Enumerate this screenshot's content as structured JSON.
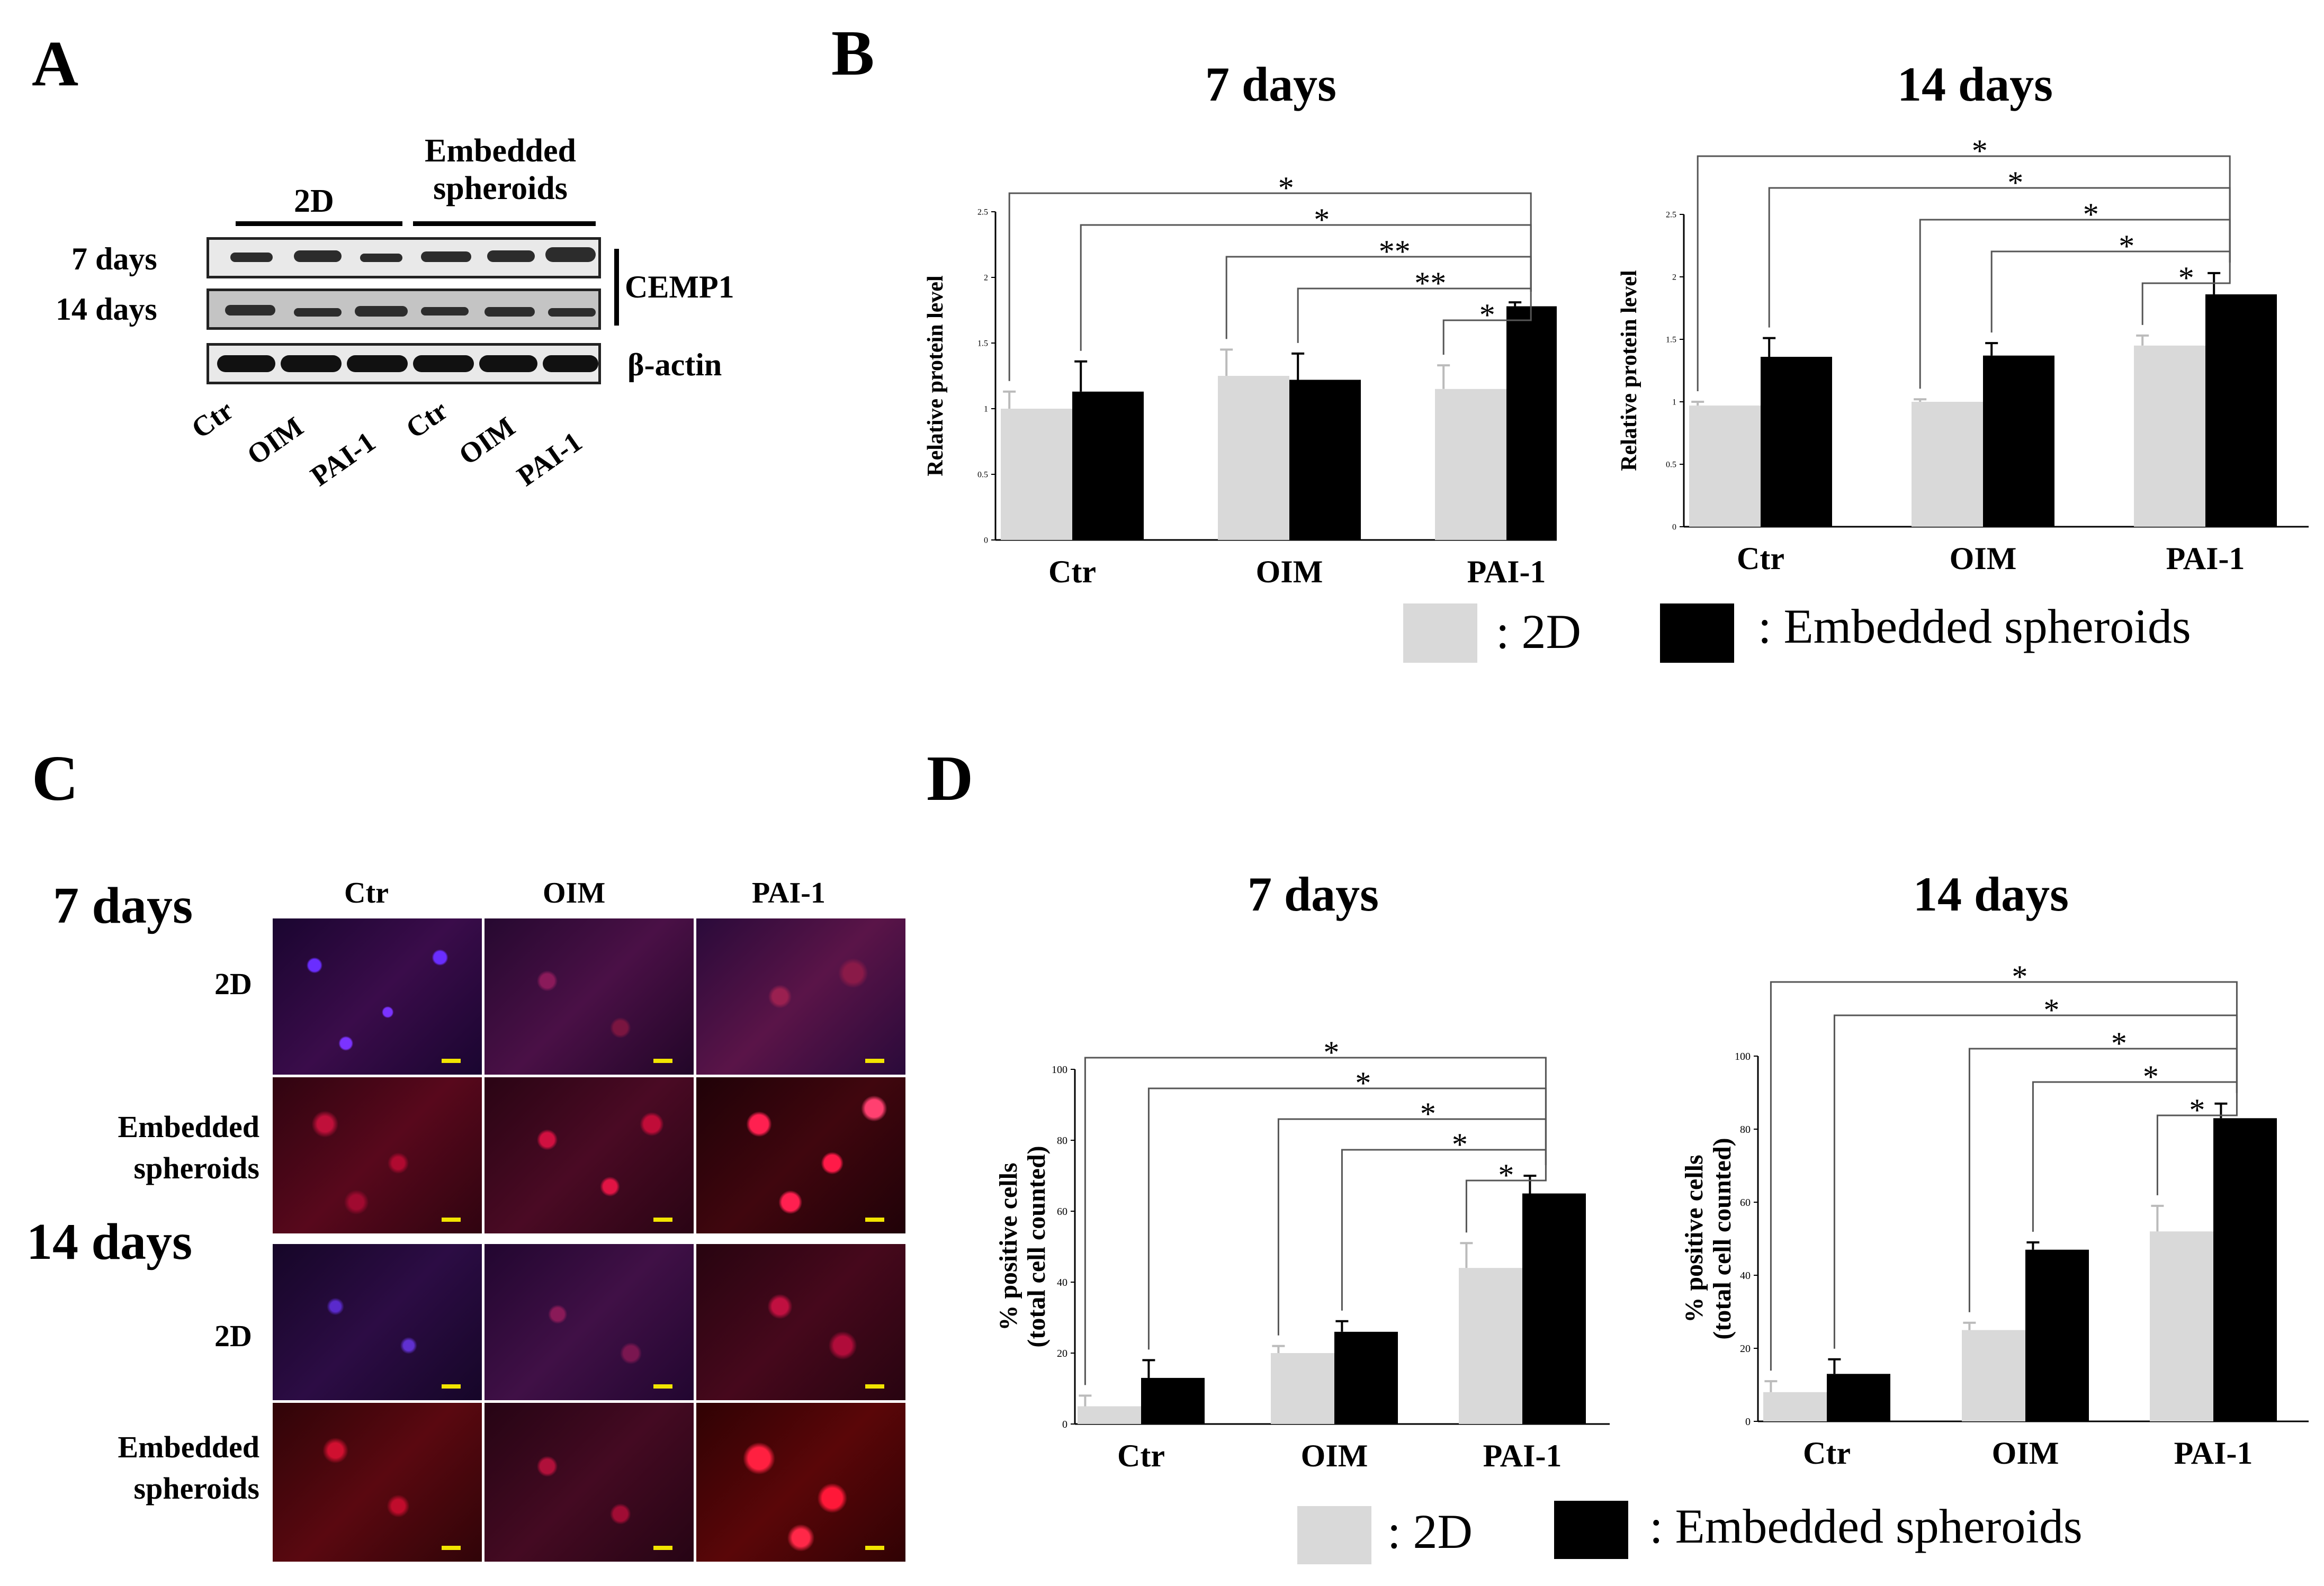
{
  "panels": {
    "A": "A",
    "B": "B",
    "C": "C",
    "D": "D"
  },
  "western_blot": {
    "group_2d": "2D",
    "group_embedded_line1": "Embedded",
    "group_embedded_line2": "spheroids",
    "row_7days": "7 days",
    "row_14days": "14 days",
    "target": "CEMP1",
    "loading": "β-actin",
    "lanes": [
      "Ctr",
      "OIM",
      "PAI-1",
      "Ctr",
      "OIM",
      "PAI-1"
    ]
  },
  "legend": {
    "label_2d": ": 2D",
    "label_emb": ": Embedded spheroids",
    "color_2d": "#d9d9d9",
    "color_emb": "#000000"
  },
  "panel_c": {
    "col_headers": [
      "Ctr",
      "OIM",
      "PAI-1"
    ],
    "time_7": "7 days",
    "time_14": "14 days",
    "row_2d": "2D",
    "row_emb_line1": "Embedded",
    "row_emb_line2": "spheroids"
  },
  "chart_data": [
    {
      "panel": "B",
      "type": "bar",
      "title": "7 days",
      "xlabel": "",
      "ylabel": "Relative protein level",
      "categories": [
        "Ctr",
        "OIM",
        "PAI-1"
      ],
      "ylim": [
        0,
        2.5
      ],
      "yticks": [
        "0",
        "0.5",
        "1",
        "1.5",
        "2",
        "2.5"
      ],
      "series": [
        {
          "name": "2D",
          "values": [
            1.0,
            1.25,
            1.15
          ],
          "errors": [
            0.13,
            0.2,
            0.18
          ]
        },
        {
          "name": "Embedded spheroids",
          "values": [
            1.13,
            1.22,
            1.78
          ],
          "errors": [
            0.23,
            0.2,
            0.03
          ]
        }
      ],
      "significance": [
        "*",
        "*",
        "**",
        "**",
        "*"
      ]
    },
    {
      "panel": "B",
      "type": "bar",
      "title": "14 days",
      "xlabel": "",
      "ylabel": "Relative protein level",
      "categories": [
        "Ctr",
        "OIM",
        "PAI-1"
      ],
      "ylim": [
        0,
        2.5
      ],
      "yticks": [
        "0",
        "0.5",
        "1",
        "1.5",
        "2",
        "2.5"
      ],
      "series": [
        {
          "name": "2D",
          "values": [
            0.97,
            1.0,
            1.45
          ],
          "errors": [
            0.03,
            0.02,
            0.08
          ]
        },
        {
          "name": "Embedded spheroids",
          "values": [
            1.36,
            1.37,
            1.86
          ],
          "errors": [
            0.15,
            0.1,
            0.17
          ]
        }
      ],
      "significance": [
        "*",
        "*",
        "*",
        "*",
        "*"
      ]
    },
    {
      "panel": "D",
      "type": "bar",
      "title": "7 days",
      "xlabel": "",
      "ylabel": "% positive cells (total cell counted)",
      "ylabel_line1": "% positive cells",
      "ylabel_line2": "(total cell counted)",
      "categories": [
        "Ctr",
        "OIM",
        "PAI-1"
      ],
      "ylim": [
        0,
        100
      ],
      "yticks": [
        "0",
        "20",
        "40",
        "60",
        "80",
        "100"
      ],
      "series": [
        {
          "name": "2D",
          "values": [
            5,
            20,
            44
          ],
          "errors": [
            3,
            2,
            7
          ]
        },
        {
          "name": "Embedded spheroids",
          "values": [
            13,
            26,
            65
          ],
          "errors": [
            5,
            3,
            5
          ]
        }
      ],
      "significance": [
        "*",
        "*",
        "*",
        "*",
        "*"
      ]
    },
    {
      "panel": "D",
      "type": "bar",
      "title": "14 days",
      "xlabel": "",
      "ylabel": "% positive cells (total cell counted)",
      "ylabel_line1": "% positive cells",
      "ylabel_line2": "(total cell counted)",
      "categories": [
        "Ctr",
        "OIM",
        "PAI-1"
      ],
      "ylim": [
        0,
        100
      ],
      "yticks": [
        "0",
        "20",
        "40",
        "60",
        "80",
        "100"
      ],
      "series": [
        {
          "name": "2D",
          "values": [
            8,
            25,
            52
          ],
          "errors": [
            3,
            2,
            7
          ]
        },
        {
          "name": "Embedded spheroids",
          "values": [
            13,
            47,
            83
          ],
          "errors": [
            4,
            2,
            4
          ]
        }
      ],
      "significance": [
        "*",
        "*",
        "*",
        "*",
        "*"
      ]
    }
  ]
}
